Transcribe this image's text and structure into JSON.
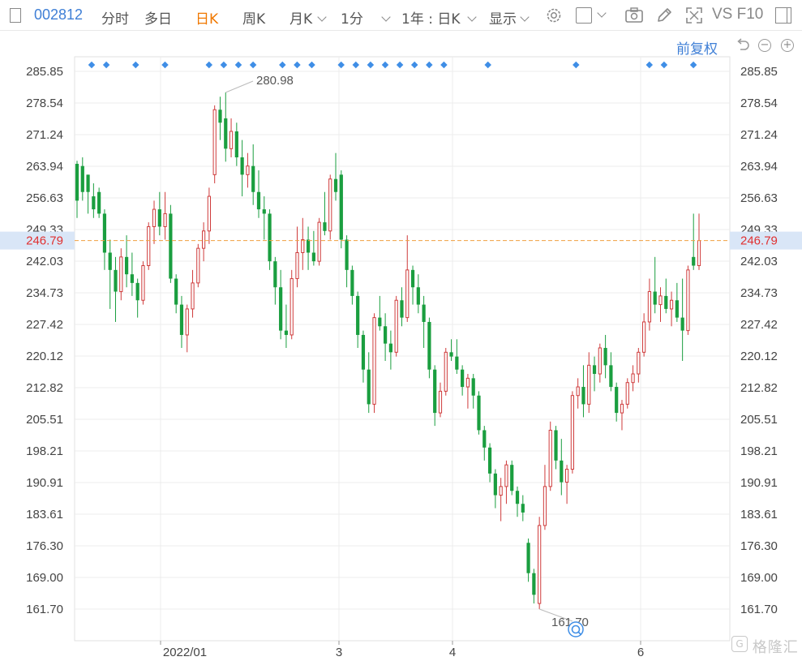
{
  "toolbar": {
    "code": "002812",
    "items": [
      "分时",
      "多日",
      "日K",
      "周K",
      "月K",
      "1分",
      "1年 : 日K",
      "显示"
    ],
    "active": "日K",
    "right_text": "VS F10"
  },
  "subbar": {
    "adjust_label": "前复权"
  },
  "colors": {
    "up": "#cf3b3b",
    "down": "#1a9e3f",
    "dashed": "#f0a040",
    "price_tag_bg": "#d9e6f7",
    "price_tag_text": "#e03030",
    "dots": "#3f8ee6",
    "marker": "#3f8ee6"
  },
  "chart_data": {
    "type": "candlestick",
    "y_ticks": [
      "285.85",
      "278.54",
      "271.24",
      "263.94",
      "256.63",
      "249.33",
      "242.03",
      "234.73",
      "227.42",
      "220.12",
      "212.82",
      "205.51",
      "198.21",
      "190.91",
      "183.61",
      "176.30",
      "169.00",
      "161.70"
    ],
    "ylim": [
      161.7,
      285.85
    ],
    "x_labels": [
      "2022/01",
      "3",
      "4",
      "6"
    ],
    "current_price": "246.79",
    "high_label": "280.98",
    "low_label": "161.70",
    "candles": [
      [
        264.5,
        265.2,
        252.0,
        256.0
      ],
      [
        264.0,
        266.0,
        256.0,
        258.0
      ],
      [
        262.0,
        262.0,
        253.0,
        258.0
      ],
      [
        257.0,
        260.0,
        252.0,
        254.0
      ],
      [
        258.0,
        259.0,
        252.0,
        253.0
      ],
      [
        253.0,
        254.0,
        240.0,
        244.0
      ],
      [
        244.0,
        247.0,
        231.0,
        240.0
      ],
      [
        240.0,
        243.0,
        228.0,
        235.0
      ],
      [
        235.0,
        245.0,
        233.0,
        243.0
      ],
      [
        243.0,
        248.0,
        236.0,
        239.0
      ],
      [
        239.0,
        244.0,
        234.0,
        237.0
      ],
      [
        237.0,
        238.0,
        229.0,
        233.0
      ],
      [
        233.0,
        242.0,
        232.0,
        241.0
      ],
      [
        241.0,
        251.0,
        240.0,
        250.0
      ],
      [
        250.0,
        256.0,
        246.0,
        254.0
      ],
      [
        254.0,
        258.0,
        248.0,
        250.0
      ],
      [
        250.0,
        258.0,
        247.0,
        253.0
      ],
      [
        253.0,
        255.0,
        237.0,
        238.0
      ],
      [
        238.0,
        239.0,
        230.0,
        232.0
      ],
      [
        232.0,
        234.0,
        222.0,
        225.0
      ],
      [
        225.0,
        232.0,
        221.0,
        231.0
      ],
      [
        231.0,
        240.0,
        229.0,
        237.0
      ],
      [
        237.0,
        246.0,
        236.0,
        245.0
      ],
      [
        245.0,
        251.0,
        242.0,
        249.0
      ],
      [
        249.0,
        259.0,
        246.0,
        257.0
      ],
      [
        262.0,
        278.0,
        260.0,
        277.0
      ],
      [
        277.0,
        280.0,
        270.0,
        274.0
      ],
      [
        275.0,
        280.98,
        265.0,
        268.0
      ],
      [
        268.0,
        275.0,
        266.0,
        272.0
      ],
      [
        272.0,
        274.0,
        264.0,
        266.0
      ],
      [
        266.0,
        270.0,
        257.0,
        262.0
      ],
      [
        262.0,
        267.0,
        259.0,
        264.0
      ],
      [
        264.0,
        269.0,
        255.0,
        258.0
      ],
      [
        258.0,
        263.0,
        252.0,
        254.0
      ],
      [
        254.0,
        257.0,
        247.0,
        253.0
      ],
      [
        253.0,
        254.0,
        240.0,
        242.0
      ],
      [
        242.0,
        243.0,
        232.0,
        236.0
      ],
      [
        236.0,
        240.0,
        224.0,
        226.0
      ],
      [
        226.0,
        232.0,
        222.0,
        225.0
      ],
      [
        225.0,
        240.0,
        224.0,
        238.0
      ],
      [
        238.0,
        250.0,
        236.0,
        244.0
      ],
      [
        244.0,
        252.0,
        240.0,
        247.0
      ],
      [
        247.0,
        250.0,
        240.0,
        244.0
      ],
      [
        244.0,
        249.0,
        241.0,
        242.0
      ],
      [
        242.0,
        252.0,
        241.0,
        251.0
      ],
      [
        251.0,
        258.0,
        248.0,
        249.0
      ],
      [
        249.0,
        262.0,
        247.0,
        261.0
      ],
      [
        261.0,
        267.0,
        256.0,
        258.0
      ],
      [
        262.0,
        263.0,
        245.0,
        247.0
      ],
      [
        247.0,
        248.0,
        236.0,
        240.0
      ],
      [
        240.0,
        241.0,
        232.0,
        234.0
      ],
      [
        234.0,
        235.0,
        222.0,
        225.0
      ],
      [
        225.0,
        226.0,
        214.0,
        217.0
      ],
      [
        217.0,
        221.0,
        207.0,
        209.0
      ],
      [
        209.0,
        230.0,
        207.0,
        229.0
      ],
      [
        229.0,
        234.0,
        226.0,
        227.0
      ],
      [
        227.0,
        230.0,
        219.0,
        223.0
      ],
      [
        223.0,
        226.0,
        217.0,
        221.0
      ],
      [
        221.0,
        234.0,
        220.0,
        233.0
      ],
      [
        233.0,
        236.0,
        227.0,
        229.0
      ],
      [
        229.0,
        248.0,
        228.0,
        240.0
      ],
      [
        240.0,
        241.0,
        232.0,
        236.0
      ],
      [
        236.0,
        239.0,
        230.0,
        232.0
      ],
      [
        232.0,
        234.0,
        222.0,
        228.0
      ],
      [
        228.0,
        229.0,
        215.0,
        217.0
      ],
      [
        217.0,
        218.0,
        204.0,
        207.0
      ],
      [
        207.0,
        214.0,
        206.0,
        212.0
      ],
      [
        212.0,
        222.0,
        211.0,
        221.0
      ],
      [
        221.0,
        224.0,
        219.0,
        220.0
      ],
      [
        220.0,
        224.0,
        216.0,
        217.0
      ],
      [
        217.0,
        218.0,
        211.0,
        213.0
      ],
      [
        213.0,
        216.0,
        208.0,
        215.0
      ],
      [
        215.0,
        216.0,
        208.0,
        211.0
      ],
      [
        211.0,
        212.0,
        202.0,
        203.0
      ],
      [
        203.0,
        204.0,
        196.0,
        199.0
      ],
      [
        199.0,
        200.0,
        191.0,
        193.0
      ],
      [
        193.0,
        194.0,
        185.0,
        188.0
      ],
      [
        188.0,
        192.0,
        182.0,
        190.0
      ],
      [
        190.0,
        196.0,
        186.0,
        195.0
      ],
      [
        195.0,
        196.0,
        188.0,
        189.0
      ],
      [
        189.0,
        190.0,
        183.0,
        186.0
      ],
      [
        186.0,
        188.0,
        182.0,
        184.0
      ],
      [
        177.0,
        178.0,
        168.0,
        170.0
      ],
      [
        170.0,
        171.0,
        163.0,
        165.0
      ],
      [
        163.0,
        183.0,
        161.7,
        181.0
      ],
      [
        181.0,
        195.0,
        180.0,
        190.0
      ],
      [
        190.0,
        205.0,
        189.0,
        203.0
      ],
      [
        203.0,
        204.0,
        194.0,
        196.0
      ],
      [
        196.0,
        201.0,
        188.0,
        191.0
      ],
      [
        191.0,
        195.0,
        186.0,
        194.0
      ],
      [
        194.0,
        212.0,
        193.0,
        211.0
      ],
      [
        211.0,
        215.0,
        208.0,
        213.0
      ],
      [
        213.0,
        218.0,
        206.0,
        209.0
      ],
      [
        209.0,
        221.0,
        207.0,
        218.0
      ],
      [
        218.0,
        220.0,
        212.0,
        216.0
      ],
      [
        216.0,
        223.0,
        214.0,
        222.0
      ],
      [
        222.0,
        225.0,
        215.0,
        218.0
      ],
      [
        218.0,
        221.0,
        212.0,
        213.0
      ],
      [
        213.0,
        214.0,
        205.0,
        207.0
      ],
      [
        207.0,
        210.0,
        203.0,
        209.0
      ],
      [
        209.0,
        215.0,
        208.0,
        214.0
      ],
      [
        214.0,
        218.0,
        212.0,
        216.0
      ],
      [
        216.0,
        222.0,
        214.0,
        221.0
      ],
      [
        221.0,
        230.0,
        220.0,
        228.0
      ],
      [
        228.0,
        238.0,
        226.0,
        235.0
      ],
      [
        235.0,
        243.0,
        230.0,
        232.0
      ],
      [
        232.0,
        236.0,
        228.0,
        234.0
      ],
      [
        234.0,
        238.0,
        230.0,
        231.0
      ],
      [
        231.0,
        235.0,
        227.0,
        233.0
      ],
      [
        233.0,
        237.0,
        228.0,
        229.0
      ],
      [
        229.0,
        238.0,
        219.0,
        226.0
      ],
      [
        226.0,
        241.0,
        225.0,
        240.0
      ],
      [
        243.0,
        253.0,
        240.0,
        241.0
      ],
      [
        241.0,
        253.0,
        240.0,
        246.79
      ]
    ]
  }
}
